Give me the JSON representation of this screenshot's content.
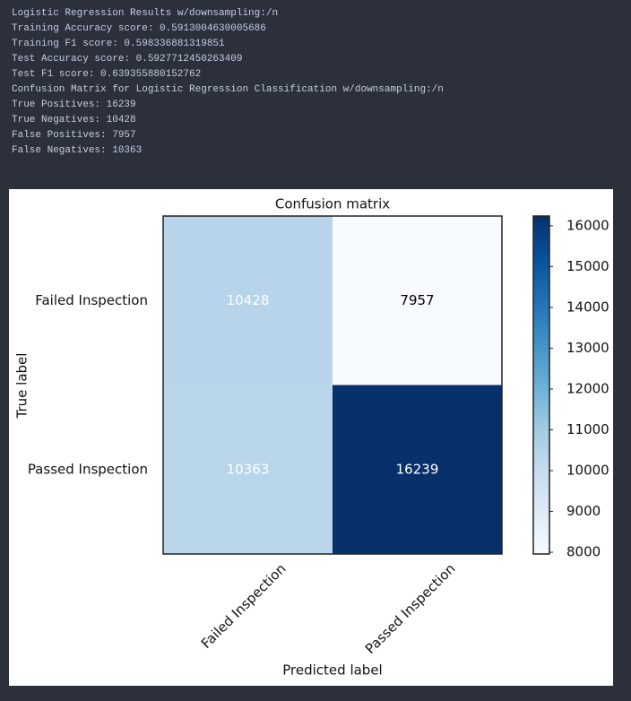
{
  "console": {
    "lines": [
      "Logistic Regression Results w/downsampling:/n",
      "Training Accuracy score:  0.5913004630005686",
      "Training F1 score:  0.598336881319851",
      "Test Accuracy score:  0.5927712450263409",
      "Test F1 score:  0.639355880152762",
      "Confusion Matrix for Logistic Regression Classification w/downsampling:/n",
      "True Positives: 16239",
      "True Negatives: 10428",
      "False Positives: 7957",
      "False Negatives: 10363"
    ]
  },
  "chart_data": {
    "type": "heatmap",
    "title": "Confusion matrix",
    "x_label": "Predicted label",
    "y_label": "True label",
    "x_categories": [
      "Failed Inspection",
      "Passed Inspection"
    ],
    "y_categories": [
      "Failed Inspection",
      "Passed Inspection"
    ],
    "values": [
      [
        10428,
        7957
      ],
      [
        10363,
        16239
      ]
    ],
    "colormap": [
      "#f7fbff",
      "#deebf7",
      "#c6dbef",
      "#9ecae1",
      "#6baed6",
      "#4292c6",
      "#2171b5",
      "#08519c",
      "#08306b"
    ],
    "zlim": [
      7957,
      16239
    ],
    "zticks": [
      8000,
      9000,
      10000,
      11000,
      12000,
      13000,
      14000,
      15000,
      16000
    ]
  }
}
